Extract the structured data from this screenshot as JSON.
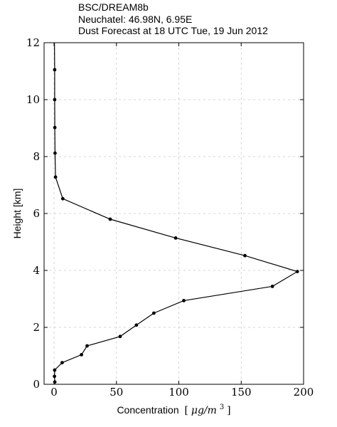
{
  "title_lines": [
    "BSC/DREAM8b",
    "Neuchatel: 46.98N, 6.95E",
    "Dust Forecast at 18 UTC Tue, 19 Jun 2012"
  ],
  "chart_data": {
    "type": "line",
    "title": "BSC/DREAM8b",
    "subtitle": "Neuchatel: 46.98N, 6.95E — Dust Forecast at 18 UTC Tue, 19 Jun 2012",
    "xlabel_text": "Concentration",
    "xlabel_unit_open": "[",
    "xlabel_unit_mu": "μg/m",
    "xlabel_unit_sup": "3",
    "xlabel_unit_close": "]",
    "ylabel": "Height [km]",
    "xlim": [
      -8,
      200
    ],
    "ylim": [
      0,
      12
    ],
    "xticks": [
      0,
      50,
      100,
      150,
      200
    ],
    "xtick_labels": [
      "0",
      "50",
      "100",
      "150",
      "200"
    ],
    "yticks": [
      0,
      2,
      4,
      6,
      8,
      10,
      12
    ],
    "ytick_labels": [
      "0",
      "2",
      "4",
      "6",
      "8",
      "10",
      "12"
    ],
    "grid": true,
    "series": [
      {
        "x": [
          0.6,
          0.3,
          0.5,
          6.5,
          22,
          26.5,
          53,
          66,
          80,
          104,
          175,
          195,
          153,
          97.5,
          45,
          7,
          1.2,
          0.8,
          0.6,
          0.5,
          0.5,
          0.3
        ],
        "y": [
          0.08,
          0.28,
          0.5,
          0.76,
          1.04,
          1.35,
          1.68,
          2.08,
          2.5,
          2.94,
          3.44,
          3.96,
          4.52,
          5.14,
          5.8,
          6.52,
          7.28,
          8.12,
          9.02,
          10.0,
          11.05,
          12.0
        ],
        "markers": [
          true,
          true,
          true,
          true,
          true,
          true,
          true,
          true,
          true,
          true,
          true,
          true,
          true,
          true,
          true,
          true,
          true,
          true,
          true,
          true,
          true,
          false
        ]
      }
    ]
  }
}
